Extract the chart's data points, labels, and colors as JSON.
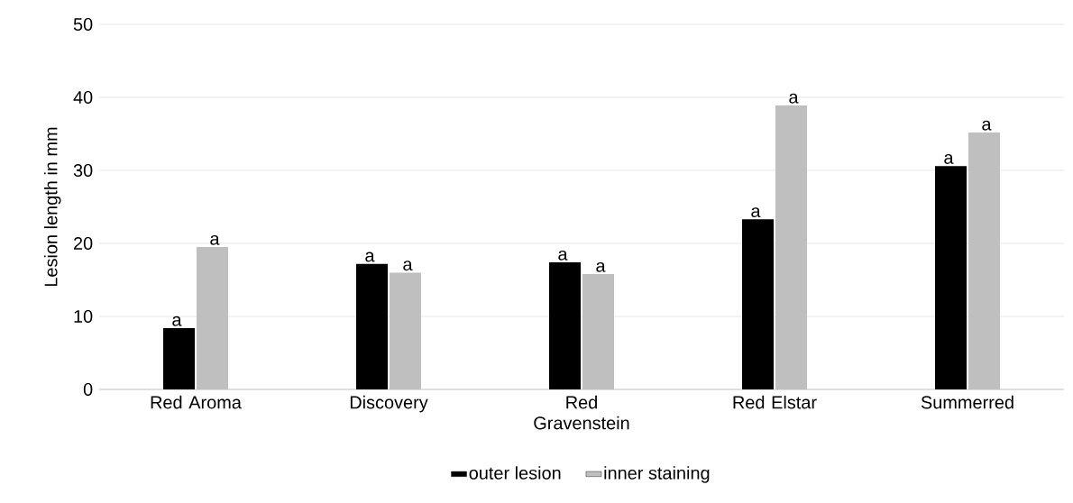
{
  "chart_data": {
    "type": "bar",
    "ylabel": "Lesion length in mm",
    "categories": [
      "Red Aroma",
      "Discovery",
      "Red Gravenstein",
      "Red Elstar",
      "Summerred"
    ],
    "series": [
      {
        "name": "outer lesion",
        "color": "#000000",
        "values": [
          8.4,
          17.2,
          17.4,
          23.3,
          30.6
        ],
        "value_labels": [
          "a",
          "a",
          "a",
          "a",
          "a"
        ]
      },
      {
        "name": "inner staining",
        "color": "#bfbfbf",
        "values": [
          19.5,
          16.0,
          15.8,
          38.9,
          35.2
        ],
        "value_labels": [
          "a",
          "a",
          "a",
          "a",
          "a"
        ]
      }
    ],
    "ylim": [
      0,
      50
    ],
    "yticks": [
      0,
      10,
      20,
      30,
      40,
      50
    ],
    "grid": "y",
    "legend": "bottom"
  }
}
